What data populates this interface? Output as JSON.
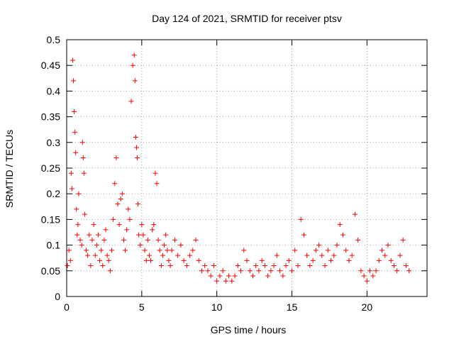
{
  "chart_data": {
    "type": "scatter",
    "title": "Day 124 of 2021, SRMTID for receiver ptsv",
    "xlabel": "GPS time / hours",
    "ylabel": "SRMTID / TECUs",
    "xlim": [
      0,
      24
    ],
    "ylim": [
      0,
      0.5
    ],
    "x_ticks": [
      0,
      5,
      10,
      15,
      20
    ],
    "x_tick_labels": [
      "0",
      "5",
      "10",
      "15",
      "20"
    ],
    "y_ticks": [
      0,
      0.05,
      0.1,
      0.15,
      0.2,
      0.25,
      0.3,
      0.35,
      0.4,
      0.45,
      0.5
    ],
    "y_tick_labels": [
      "0",
      "0.05",
      "0.1",
      "0.15",
      "0.2",
      "0.25",
      "0.3",
      "0.35",
      "0.4",
      "0.45",
      "0.5"
    ],
    "grid": true,
    "marker": "+",
    "series_color": "#ff0000",
    "series": [
      {
        "name": "ptsv",
        "x": [
          0.05,
          0.15,
          0.25,
          0.3,
          0.35,
          0.4,
          0.45,
          0.5,
          0.55,
          0.6,
          0.65,
          0.7,
          0.75,
          0.8,
          0.9,
          1.0,
          1.05,
          1.1,
          1.15,
          1.2,
          1.3,
          1.4,
          1.5,
          1.6,
          1.7,
          1.8,
          1.9,
          2.0,
          2.1,
          2.2,
          2.3,
          2.4,
          2.5,
          2.6,
          2.7,
          2.8,
          2.9,
          3.0,
          3.1,
          3.2,
          3.3,
          3.4,
          3.5,
          3.6,
          3.7,
          3.8,
          3.9,
          4.0,
          4.1,
          4.2,
          4.3,
          4.4,
          4.5,
          4.55,
          4.6,
          4.65,
          4.7,
          4.75,
          4.8,
          4.9,
          5.0,
          5.1,
          5.2,
          5.3,
          5.4,
          5.5,
          5.6,
          5.7,
          5.8,
          5.9,
          6.0,
          6.1,
          6.2,
          6.3,
          6.4,
          6.5,
          6.6,
          6.7,
          6.8,
          6.9,
          7.0,
          7.2,
          7.4,
          7.6,
          7.8,
          8.0,
          8.2,
          8.4,
          8.6,
          8.8,
          9.0,
          9.2,
          9.4,
          9.6,
          9.8,
          10.0,
          10.2,
          10.4,
          10.6,
          10.8,
          11.0,
          11.2,
          11.4,
          11.6,
          11.8,
          12.0,
          12.2,
          12.4,
          12.6,
          12.8,
          13.0,
          13.2,
          13.4,
          13.6,
          13.8,
          14.0,
          14.2,
          14.4,
          14.6,
          14.8,
          15.0,
          15.2,
          15.4,
          15.6,
          15.8,
          16.0,
          16.2,
          16.4,
          16.6,
          16.8,
          17.0,
          17.2,
          17.4,
          17.6,
          17.8,
          18.0,
          18.2,
          18.4,
          18.6,
          18.8,
          19.0,
          19.2,
          19.4,
          19.6,
          19.8,
          20.0,
          20.2,
          20.4,
          20.6,
          20.8,
          21.0,
          21.2,
          21.4,
          21.6,
          21.8,
          22.0,
          22.2,
          22.4,
          22.6,
          22.8
        ],
        "y": [
          0.06,
          0.09,
          0.07,
          0.24,
          0.21,
          0.46,
          0.42,
          0.36,
          0.32,
          0.28,
          0.17,
          0.12,
          0.14,
          0.2,
          0.11,
          0.1,
          0.3,
          0.27,
          0.24,
          0.16,
          0.09,
          0.08,
          0.12,
          0.06,
          0.11,
          0.14,
          0.08,
          0.1,
          0.12,
          0.07,
          0.09,
          0.06,
          0.11,
          0.13,
          0.08,
          0.07,
          0.05,
          0.09,
          0.15,
          0.22,
          0.27,
          0.18,
          0.14,
          0.19,
          0.2,
          0.11,
          0.09,
          0.13,
          0.17,
          0.15,
          0.38,
          0.45,
          0.47,
          0.42,
          0.31,
          0.29,
          0.27,
          0.18,
          0.12,
          0.1,
          0.14,
          0.12,
          0.09,
          0.07,
          0.11,
          0.08,
          0.07,
          0.13,
          0.14,
          0.24,
          0.22,
          0.11,
          0.09,
          0.06,
          0.08,
          0.1,
          0.12,
          0.09,
          0.07,
          0.06,
          0.09,
          0.11,
          0.08,
          0.1,
          0.07,
          0.06,
          0.08,
          0.09,
          0.11,
          0.07,
          0.05,
          0.06,
          0.05,
          0.04,
          0.06,
          0.03,
          0.04,
          0.05,
          0.03,
          0.04,
          0.03,
          0.04,
          0.06,
          0.05,
          0.09,
          0.07,
          0.05,
          0.04,
          0.06,
          0.05,
          0.07,
          0.06,
          0.04,
          0.05,
          0.06,
          0.08,
          0.05,
          0.04,
          0.06,
          0.07,
          0.05,
          0.09,
          0.06,
          0.15,
          0.12,
          0.08,
          0.06,
          0.07,
          0.09,
          0.1,
          0.08,
          0.06,
          0.09,
          0.07,
          0.08,
          0.1,
          0.14,
          0.12,
          0.09,
          0.07,
          0.08,
          0.16,
          0.11,
          0.05,
          0.04,
          0.03,
          0.05,
          0.04,
          0.05,
          0.07,
          0.09,
          0.08,
          0.1,
          0.07,
          0.06,
          0.05,
          0.08,
          0.11,
          0.06,
          0.05
        ]
      }
    ]
  }
}
